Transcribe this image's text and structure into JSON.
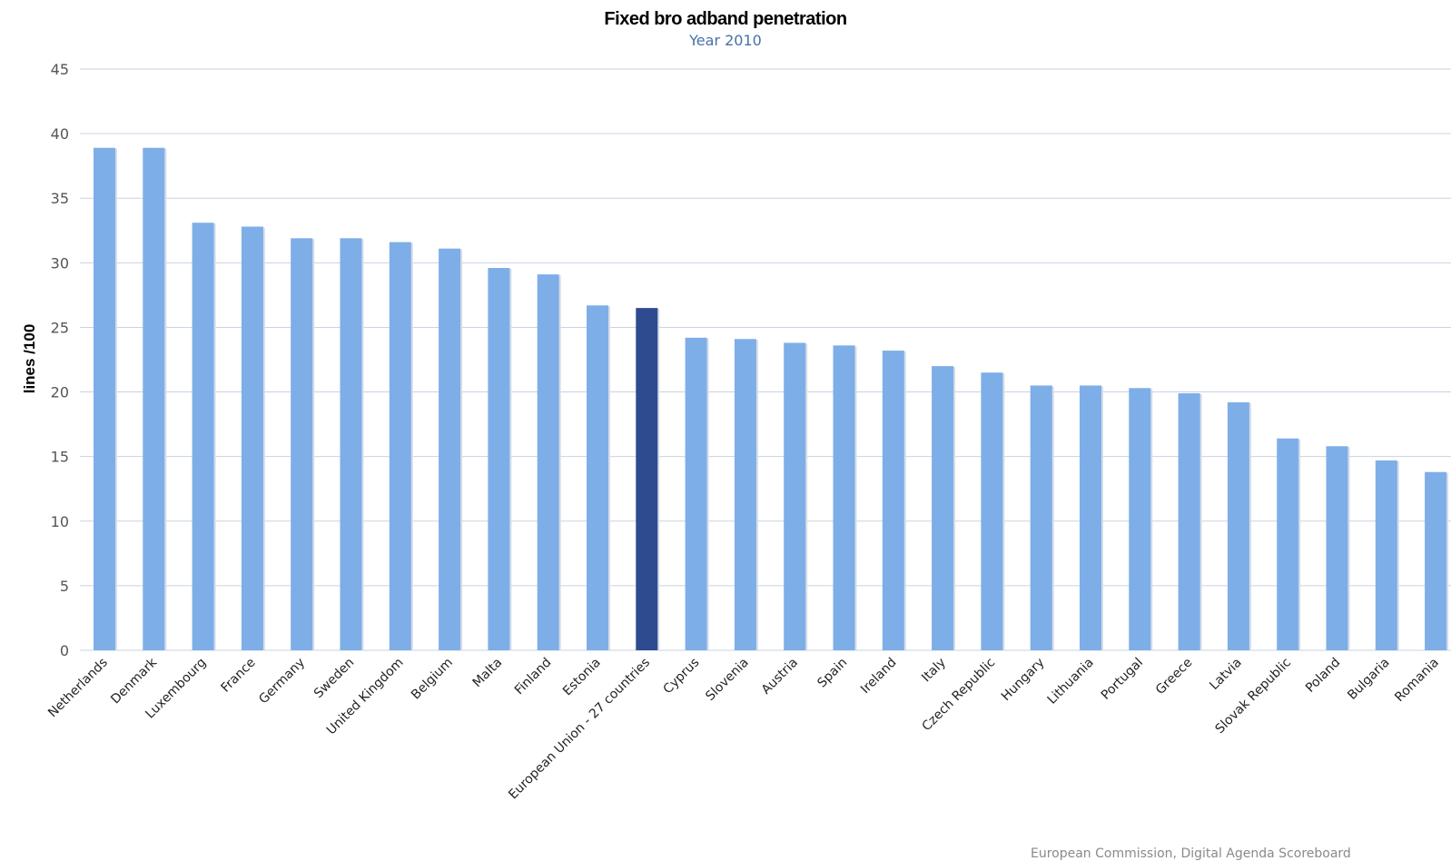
{
  "chart_data": {
    "type": "bar",
    "title": "Fixed bro adband penetration",
    "subtitle": "Year 2010",
    "ylabel": "lines /100",
    "xlabel": "",
    "ylim": [
      0,
      45
    ],
    "yticks": [
      0,
      5,
      10,
      15,
      20,
      25,
      30,
      35,
      40,
      45
    ],
    "grid": true,
    "legend": "none",
    "categories": [
      "Netherlands",
      "Denmark",
      "Luxembourg",
      "France",
      "Germany",
      "Sweden",
      "United Kingdom",
      "Belgium",
      "Malta",
      "Finland",
      "Estonia",
      "European Union - 27 countries",
      "Cyprus",
      "Slovenia",
      "Austria",
      "Spain",
      "Ireland",
      "Italy",
      "Czech Republic",
      "Hungary",
      "Lithuania",
      "Portugal",
      "Greece",
      "Latvia",
      "Slovak Republic",
      "Poland",
      "Bulgaria",
      "Romania"
    ],
    "values": [
      38.9,
      38.9,
      33.1,
      32.8,
      31.9,
      31.9,
      31.6,
      31.1,
      29.6,
      29.1,
      26.7,
      26.5,
      24.2,
      24.1,
      23.8,
      23.6,
      23.2,
      22.0,
      21.5,
      20.5,
      20.5,
      20.3,
      19.9,
      19.2,
      16.4,
      15.8,
      14.7,
      13.8
    ],
    "highlight_category": "European Union - 27 countries",
    "colors": {
      "bar": "#7eaee8",
      "highlight": "#2e4b8f",
      "grid": "#c9d3e3"
    },
    "credit": "European Commission, Digital Agenda Scoreboard"
  }
}
